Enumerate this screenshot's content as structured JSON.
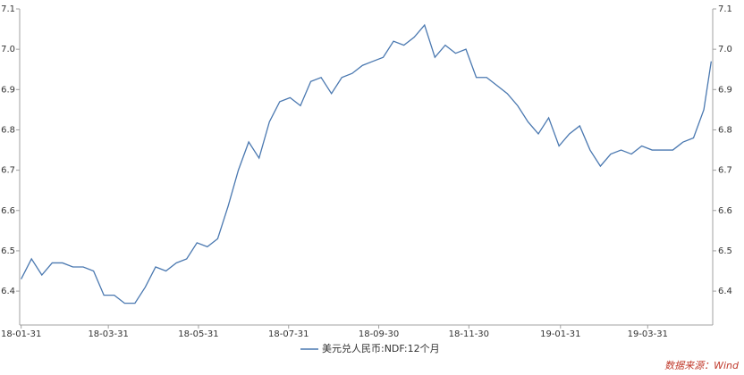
{
  "chart_data": {
    "type": "line",
    "legend_position": "bottom",
    "source": "数据来源：Wind",
    "x": [
      "18-01-31",
      "18-02-07",
      "18-02-14",
      "18-02-21",
      "18-02-28",
      "18-03-07",
      "18-03-14",
      "18-03-21",
      "18-03-28",
      "18-04-04",
      "18-04-11",
      "18-04-18",
      "18-04-25",
      "18-05-02",
      "18-05-09",
      "18-05-16",
      "18-05-23",
      "18-05-30",
      "18-06-06",
      "18-06-13",
      "18-06-20",
      "18-06-27",
      "18-07-04",
      "18-07-11",
      "18-07-18",
      "18-07-25",
      "18-08-01",
      "18-08-08",
      "18-08-15",
      "18-08-22",
      "18-08-29",
      "18-09-05",
      "18-09-12",
      "18-09-19",
      "18-09-26",
      "18-10-03",
      "18-10-10",
      "18-10-17",
      "18-10-24",
      "18-10-31",
      "18-11-07",
      "18-11-14",
      "18-11-21",
      "18-11-28",
      "18-12-05",
      "18-12-12",
      "18-12-19",
      "18-12-26",
      "19-01-02",
      "19-01-09",
      "19-01-16",
      "19-01-23",
      "19-01-30",
      "19-02-06",
      "19-02-13",
      "19-02-20",
      "19-02-27",
      "19-03-06",
      "19-03-13",
      "19-03-20",
      "19-03-27",
      "19-04-03",
      "19-04-10",
      "19-04-17",
      "19-04-24",
      "19-05-01",
      "19-05-08",
      "19-05-13"
    ],
    "series": [
      {
        "name": "美元兑人民币:NDF:12个月",
        "color": "#4a78b0",
        "values": [
          6.43,
          6.48,
          6.44,
          6.47,
          6.47,
          6.46,
          6.46,
          6.45,
          6.39,
          6.39,
          6.37,
          6.37,
          6.41,
          6.46,
          6.45,
          6.47,
          6.48,
          6.52,
          6.51,
          6.53,
          6.61,
          6.7,
          6.77,
          6.73,
          6.82,
          6.87,
          6.88,
          6.86,
          6.92,
          6.93,
          6.89,
          6.93,
          6.94,
          6.96,
          6.97,
          6.98,
          7.02,
          7.01,
          7.03,
          7.06,
          6.98,
          7.01,
          6.99,
          7.0,
          6.93,
          6.93,
          6.91,
          6.89,
          6.86,
          6.82,
          6.79,
          6.83,
          6.76,
          6.79,
          6.81,
          6.75,
          6.71,
          6.74,
          6.75,
          6.74,
          6.76,
          6.75,
          6.75,
          6.75,
          6.77,
          6.78,
          6.85,
          6.97
        ]
      }
    ],
    "xlim": [
      "18-01-30",
      "19-05-14"
    ],
    "xticks": [
      "18-01-31",
      "18-03-31",
      "18-05-31",
      "18-07-31",
      "18-09-30",
      "18-11-30",
      "19-01-31",
      "19-03-31"
    ],
    "ylim": [
      6.316,
      7.1
    ],
    "yticks": [
      {
        "value": 6.4,
        "label": "6.4"
      },
      {
        "value": 6.5,
        "label": "6.5"
      },
      {
        "value": 6.6,
        "label": "6.6"
      },
      {
        "value": 6.7,
        "label": "6.7"
      },
      {
        "value": 6.8,
        "label": "6.8"
      },
      {
        "value": 6.9,
        "label": "6.9"
      },
      {
        "value": 7.0,
        "label": "7.0"
      },
      {
        "value": 7.1,
        "label": "7.1"
      }
    ],
    "grid": false
  }
}
